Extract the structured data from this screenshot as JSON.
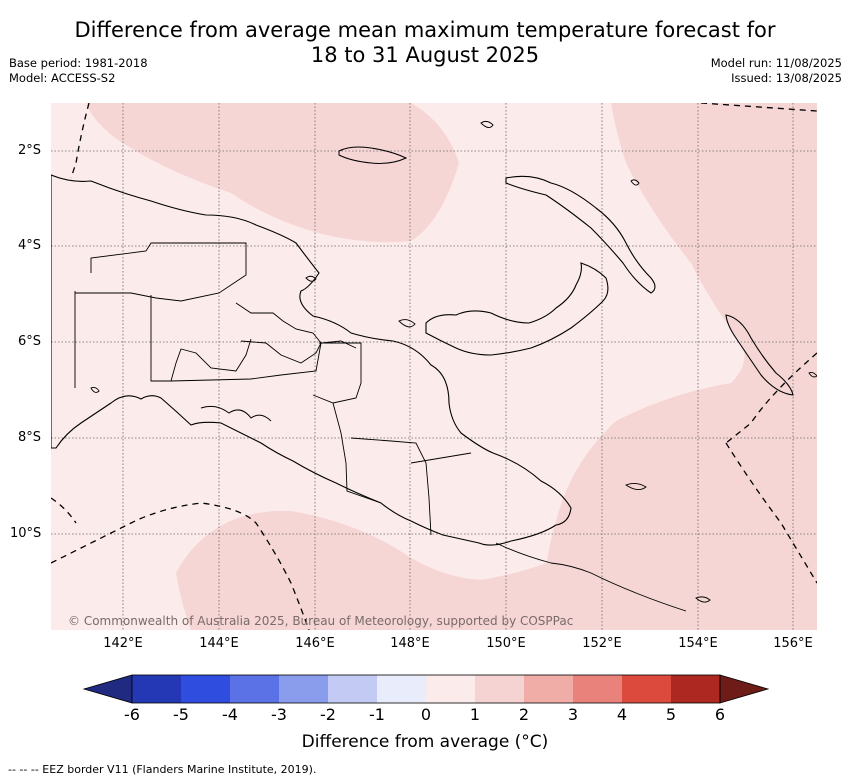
{
  "title_line1": "Difference from average mean maximum temperature forecast for",
  "title_line2": "18 to 31 August 2025",
  "base_period": "Base period: 1981-2018",
  "model": "Model: ACCESS-S2",
  "model_run": "Model run: 11/08/2025",
  "issued": "Issued: 13/08/2025",
  "lon_labels": [
    "142°E",
    "144°E",
    "146°E",
    "148°E",
    "150°E",
    "152°E",
    "154°E",
    "156°E"
  ],
  "lat_labels": [
    "2°S",
    "4°S",
    "6°S",
    "8°S",
    "10°S"
  ],
  "copyright": "© Commonwealth of Australia 2025, Bureau of Meteorology, supported by COSPPac",
  "colorbar": {
    "ticks": [
      "-6",
      "-5",
      "-4",
      "-3",
      "-2",
      "-1",
      "0",
      "1",
      "2",
      "3",
      "4",
      "5",
      "6"
    ],
    "under_color": "#1f2a80",
    "over_color": "#6e1c18",
    "colors": [
      "#2438b5",
      "#2f4ee0",
      "#5a72e6",
      "#8a9ded",
      "#c3cbf5",
      "#e8ecfb",
      "#fbebea",
      "#f5d3d2",
      "#f0aca7",
      "#e8827a",
      "#dc4a3e",
      "#ad2820"
    ],
    "label": "Difference from average (°C)"
  },
  "legend_note": "--  --  -- EEZ border V11 (Flanders Marine Institute, 2019).",
  "map_colors": {
    "light": "#fbebea",
    "medium": "#f5d6d5",
    "coast": "#000000"
  }
}
